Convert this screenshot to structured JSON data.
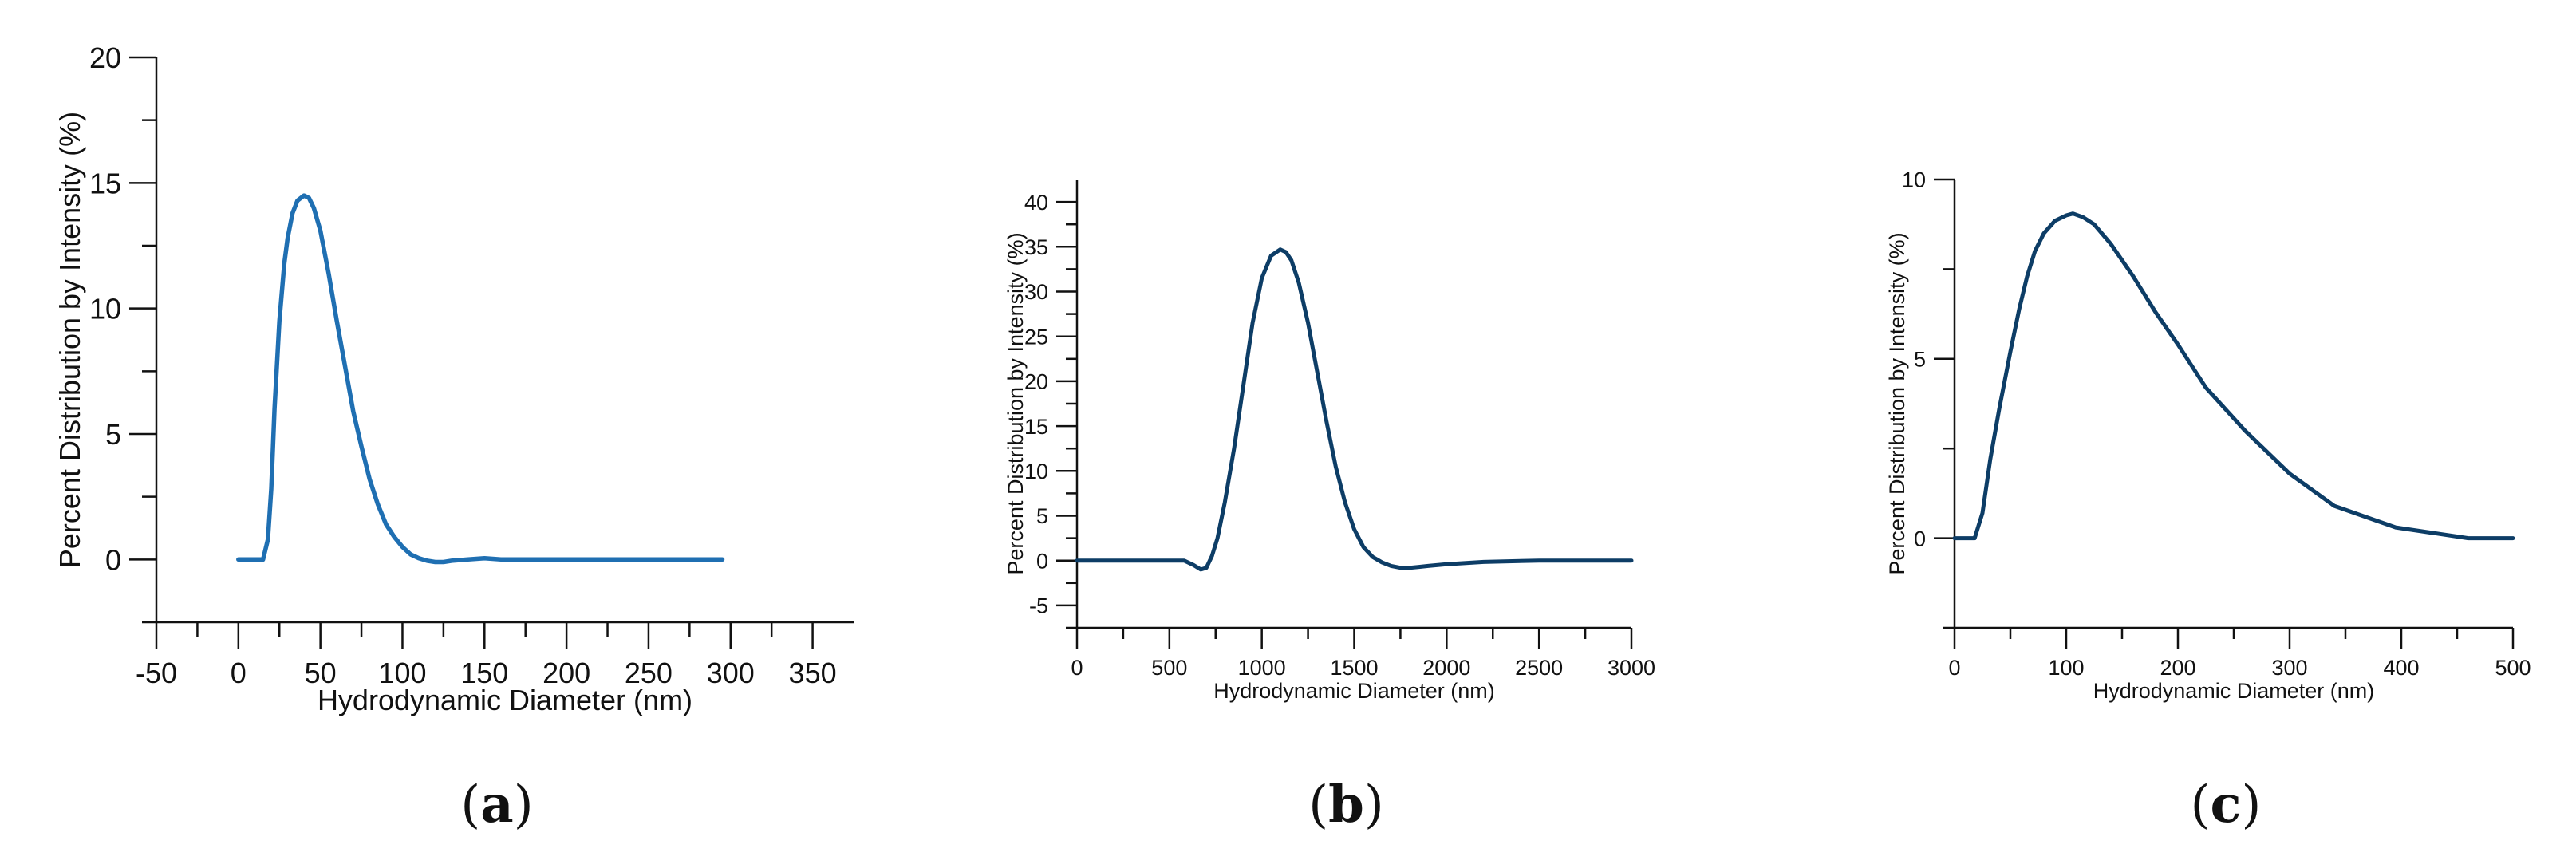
{
  "chart_data": [
    {
      "type": "line",
      "panel_label": "a",
      "xlabel": "Hydrodynamic Diameter (nm)",
      "ylabel": "Percent Distribution by Intensity (%)",
      "xlim": [
        -50,
        375
      ],
      "ylim": [
        -2.5,
        20
      ],
      "xticks": [
        -50,
        0,
        50,
        100,
        150,
        200,
        250,
        300,
        350
      ],
      "yticks": [
        0,
        5,
        10,
        15,
        20
      ],
      "color": "#1f6fb2",
      "series": [
        {
          "x": [
            0,
            15,
            18,
            20,
            22,
            25,
            28,
            30,
            33,
            36,
            40,
            43,
            46,
            50,
            55,
            60,
            65,
            70,
            75,
            80,
            85,
            90,
            95,
            100,
            105,
            110,
            115,
            120,
            125,
            130,
            140,
            150,
            160,
            170,
            200,
            250,
            295
          ],
          "y": [
            0,
            0,
            0.8,
            2.8,
            6.0,
            9.5,
            11.8,
            12.8,
            13.8,
            14.3,
            14.5,
            14.4,
            14.0,
            13.1,
            11.4,
            9.5,
            7.7,
            5.9,
            4.5,
            3.2,
            2.2,
            1.4,
            0.9,
            0.5,
            0.2,
            0.05,
            -0.05,
            -0.1,
            -0.1,
            -0.05,
            0,
            0.05,
            0,
            0,
            0,
            0,
            0
          ]
        }
      ]
    },
    {
      "type": "line",
      "panel_label": "b",
      "xlabel": "Hydrodynamic Diameter (nm)",
      "ylabel": "Percent Distribution by Intensity (%)",
      "xlim": [
        0,
        3000
      ],
      "ylim": [
        -7.5,
        42.5
      ],
      "xticks": [
        0,
        500,
        1000,
        1500,
        2000,
        2500,
        3000
      ],
      "yticks": [
        -5,
        0,
        5,
        10,
        15,
        20,
        25,
        30,
        35,
        40
      ],
      "color": "#0d3d66",
      "series": [
        {
          "x": [
            0,
            500,
            580,
            630,
            670,
            700,
            730,
            760,
            800,
            850,
            900,
            950,
            1000,
            1050,
            1100,
            1130,
            1160,
            1200,
            1250,
            1300,
            1350,
            1400,
            1450,
            1500,
            1550,
            1600,
            1650,
            1700,
            1750,
            1800,
            1850,
            1900,
            2000,
            2200,
            2500,
            3000
          ],
          "y": [
            0,
            0,
            0,
            -0.5,
            -1.0,
            -0.8,
            0.5,
            2.5,
            6.5,
            12.5,
            19.5,
            26.5,
            31.5,
            34.0,
            34.7,
            34.4,
            33.5,
            31.0,
            26.5,
            21.0,
            15.5,
            10.5,
            6.5,
            3.5,
            1.5,
            0.4,
            -0.2,
            -0.6,
            -0.8,
            -0.8,
            -0.7,
            -0.6,
            -0.4,
            -0.15,
            0,
            0
          ]
        }
      ]
    },
    {
      "type": "line",
      "panel_label": "c",
      "xlabel": "Hydrodynamic Diameter (nm)",
      "ylabel": "Percent Distribution by Intensity (%)",
      "xlim": [
        0,
        500
      ],
      "ylim": [
        -2.5,
        10
      ],
      "xticks": [
        0,
        100,
        200,
        300,
        400,
        500
      ],
      "yticks": [
        0,
        5,
        10
      ],
      "color": "#0d3d66",
      "series": [
        {
          "x": [
            0,
            18,
            25,
            32,
            40,
            50,
            58,
            65,
            72,
            80,
            90,
            100,
            106,
            115,
            125,
            140,
            160,
            180,
            200,
            225,
            260,
            300,
            340,
            395,
            460,
            500
          ],
          "y": [
            0,
            0,
            0.7,
            2.2,
            3.6,
            5.2,
            6.4,
            7.3,
            8.0,
            8.5,
            8.85,
            9.0,
            9.05,
            8.95,
            8.75,
            8.2,
            7.3,
            6.3,
            5.4,
            4.2,
            3.0,
            1.8,
            0.9,
            0.3,
            0,
            0
          ]
        }
      ]
    }
  ]
}
